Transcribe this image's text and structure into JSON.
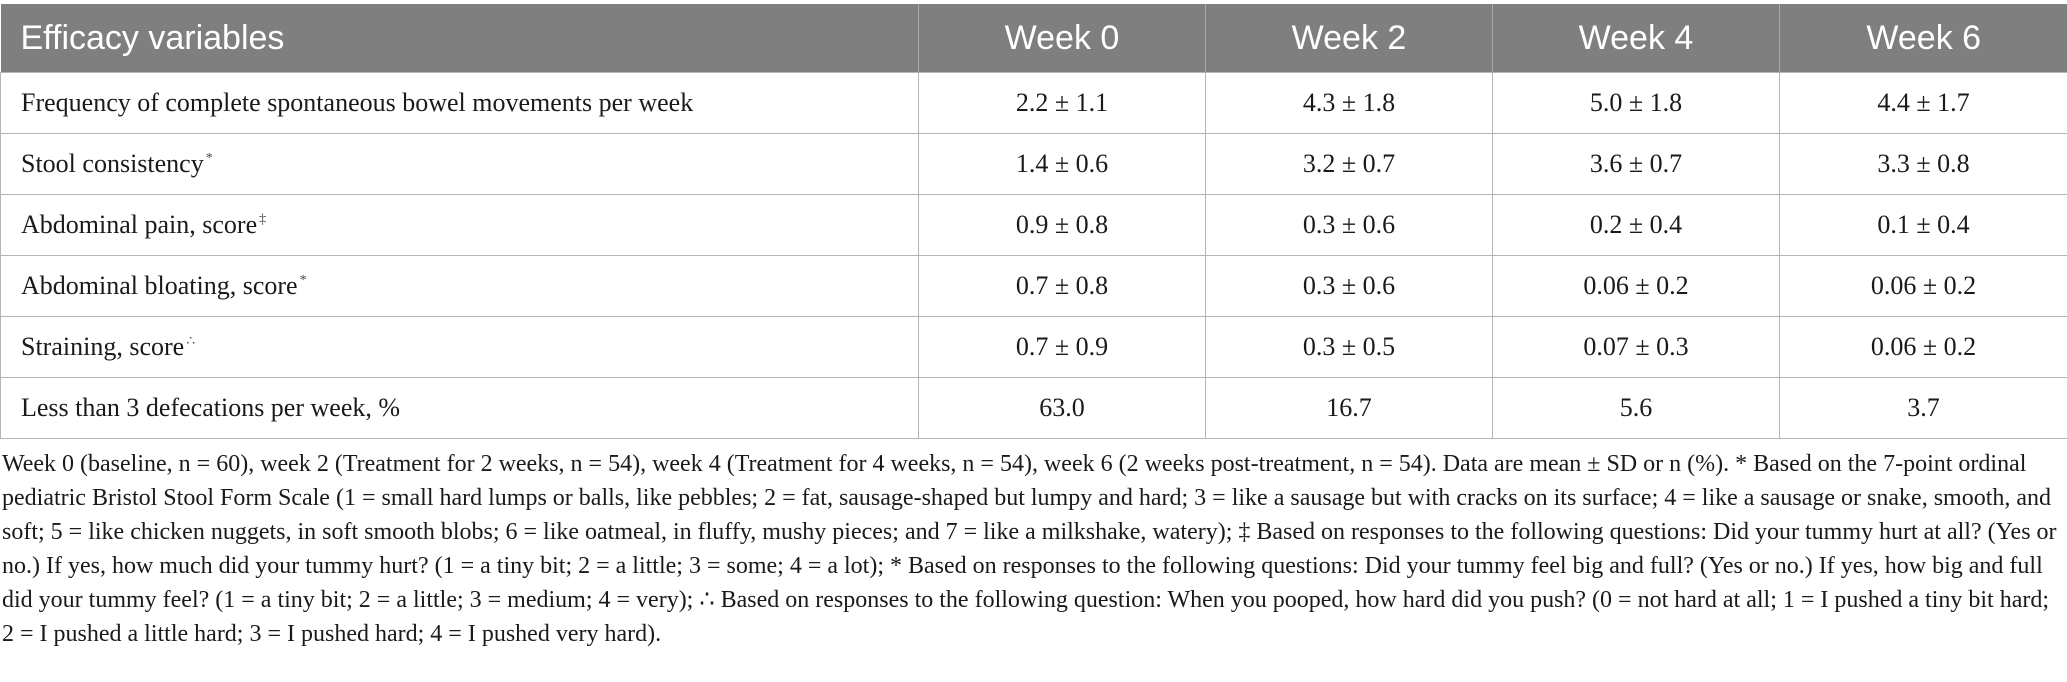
{
  "table": {
    "headers": [
      "Efficacy variables",
      "Week 0",
      "Week 2",
      "Week 4",
      "Week 6"
    ],
    "rows": [
      {
        "label": "Frequency of complete spontaneous bowel movements per week",
        "mark": "",
        "values": [
          "2.2 ± 1.1",
          "4.3 ± 1.8",
          "5.0 ± 1.8",
          "4.4 ± 1.7"
        ]
      },
      {
        "label": "Stool consistency",
        "mark": "*",
        "values": [
          "1.4 ± 0.6",
          "3.2 ± 0.7",
          "3.6 ± 0.7",
          "3.3 ± 0.8"
        ]
      },
      {
        "label": "Abdominal pain, score",
        "mark": "‡",
        "values": [
          "0.9 ± 0.8",
          "0.3 ± 0.6",
          "0.2 ± 0.4",
          "0.1 ± 0.4"
        ]
      },
      {
        "label": "Abdominal bloating, score",
        "mark": "*",
        "values": [
          "0.7 ± 0.8",
          "0.3 ± 0.6",
          "0.06 ± 0.2",
          "0.06 ± 0.2"
        ]
      },
      {
        "label": "Straining, score",
        "mark": "∴",
        "values": [
          "0.7 ± 0.9",
          "0.3 ± 0.5",
          "0.07 ± 0.3",
          "0.06 ± 0.2"
        ]
      },
      {
        "label": "Less than 3 defecations per week, %",
        "mark": "",
        "values": [
          "63.0",
          "16.7",
          "5.6",
          "3.7"
        ]
      }
    ]
  },
  "footnote": "Week 0 (baseline, n = 60), week 2 (Treatment for 2 weeks, n = 54), week 4 (Treatment for 4 weeks, n = 54), week 6 (2 weeks post-treatment, n = 54). Data are mean ± SD or n (%). * Based on the 7-point ordinal pediatric Bristol Stool Form Scale (1 = small hard lumps or balls, like pebbles; 2 = fat, sausage-shaped but lumpy and hard; 3 = like a sausage but with cracks on its surface; 4 = like a sausage or snake, smooth, and soft; 5 = like chicken nuggets, in soft smooth blobs; 6 = like oatmeal, in fluffy, mushy pieces; and 7 = like a milkshake, watery); ‡ Based on responses to the following questions: Did your tummy hurt at all? (Yes or no.) If yes, how much did your tummy hurt? (1 = a tiny bit; 2 = a little; 3 = some; 4 = a lot); * Based on responses to the following questions: Did your tummy feel big and full? (Yes or no.) If yes, how big and full did your tummy feel? (1 = a tiny bit; 2 = a little; 3 = medium; 4 = very); ∴ Based on responses to the following question: When you pooped, how hard did you push? (0 = not hard at all; 1 = I pushed a tiny bit hard; 2 = I pushed a little hard; 3 = I pushed hard; 4 = I pushed very hard).",
  "colors": {
    "header_bg": "#7f7f7f",
    "header_text": "#ffffff",
    "grid": "#b5b5b5"
  }
}
